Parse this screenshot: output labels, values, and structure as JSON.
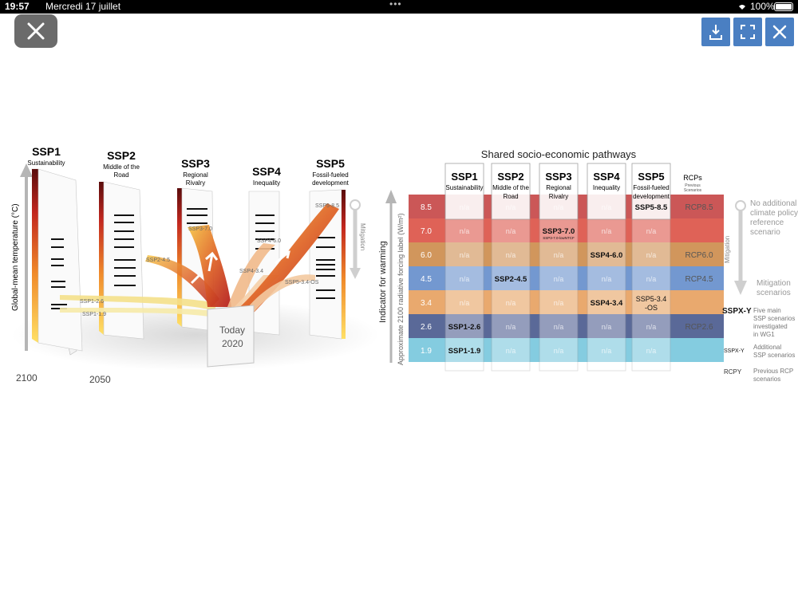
{
  "status_bar": {
    "time": "19:57",
    "date": "Mercredi 17 juillet",
    "battery": "100%"
  },
  "toolbar": {
    "close": "close-icon",
    "download": "download-icon",
    "fullscreen": "fullscreen-icon",
    "dismiss": "close-icon"
  },
  "left_panel": {
    "ylabel": "Global-mean temperature (°C)",
    "axis_2100": "2100",
    "axis_2050": "2050",
    "today_label": "Today",
    "today_year": "2020",
    "mitigation": "Mitigation",
    "ssps": [
      {
        "name": "SSP1",
        "desc1": "Sustainability",
        "desc2": ""
      },
      {
        "name": "SSP2",
        "desc1": "Middle of the",
        "desc2": "Road"
      },
      {
        "name": "SSP3",
        "desc1": "Regional",
        "desc2": "Rivalry"
      },
      {
        "name": "SSP4",
        "desc1": "Inequality",
        "desc2": ""
      },
      {
        "name": "SSP5",
        "desc1": "Fossil-fueled",
        "desc2": "development"
      }
    ],
    "scenario_labels": [
      "SSP1-2.6",
      "SSP1-1.9",
      "SSP2-4.5",
      "SSP3-7.0",
      "SSP4-6.0",
      "SSP4-3.4",
      "SSP5-8.5",
      "SSP5-3.4-OS"
    ]
  },
  "right_panel": {
    "title": "Shared socio-economic pathways",
    "ylabel1": "Indicator for warming",
    "ylabel2": "Approximate 2100 radiative forcing label (W/m²)",
    "levels": [
      "8.5",
      "7.0",
      "6.0",
      "4.5",
      "3.4",
      "2.6",
      "1.9"
    ],
    "band_colors": [
      "#c23a3a",
      "#d9463a",
      "#c9843f",
      "#5b86c8",
      "#e59a55",
      "#3d4f86",
      "#6ec3db"
    ],
    "columns": [
      {
        "name": "SSP1",
        "desc1": "Sustainability",
        "desc2": "",
        "cells": [
          "n/a",
          "n/a",
          "n/a",
          "n/a",
          "n/a",
          "SSP1-2.6",
          "SSP1-1.9"
        ]
      },
      {
        "name": "SSP2",
        "desc1": "Middle of the",
        "desc2": "Road",
        "cells": [
          "n/a",
          "n/a",
          "n/a",
          "SSP2-4.5",
          "n/a",
          "n/a",
          "n/a"
        ]
      },
      {
        "name": "SSP3",
        "desc1": "Regional",
        "desc2": "Rivalry",
        "cells": [
          "n/a",
          "SSP3-7.0",
          "n/a",
          "n/a",
          "n/a",
          "n/a",
          "n/a"
        ]
      },
      {
        "name": "SSP4",
        "desc1": "Inequality",
        "desc2": "",
        "cells": [
          "n/a",
          "n/a",
          "SSP4-6.0",
          "n/a",
          "SSP4-3.4",
          "n/a",
          "n/a"
        ]
      },
      {
        "name": "SSP5",
        "desc1": "Fossil-fueled",
        "desc2": "development",
        "cells": [
          "SSP5-8.5",
          "n/a",
          "n/a",
          "n/a",
          "SSP5-3.4-OS",
          "n/a",
          "n/a"
        ]
      }
    ],
    "rcp_header": "RCPs",
    "rcp_sub1": "Previous",
    "rcp_sub2": "Scenarios",
    "rcp_cells": [
      "RCP8.5",
      "",
      "RCP6.0",
      "RCP4.5",
      "",
      "RCP2.6",
      ""
    ],
    "ssp3_note": "SSP3-7.0-lowNTCF",
    "mitigation": "Mitigation",
    "legend_no_add1": "No additional",
    "legend_no_add2": "climate policy",
    "legend_no_add3": "reference",
    "legend_no_add4": "scenario",
    "legend_mit1": "Mitigation",
    "legend_mit2": "scenarios",
    "key1_label": "SSPX-Y",
    "key1_t1": "Five main",
    "key1_t2": "SSP scenarios",
    "key1_t3": "investigated",
    "key1_t4": "in WG1",
    "key2_label": "SSPX-Y",
    "key2_t1": "Additional",
    "key2_t2": "SSP scenarios",
    "key3_label": "RCPY",
    "key3_t1": "Previous RCP",
    "key3_t2": "scenarios"
  }
}
